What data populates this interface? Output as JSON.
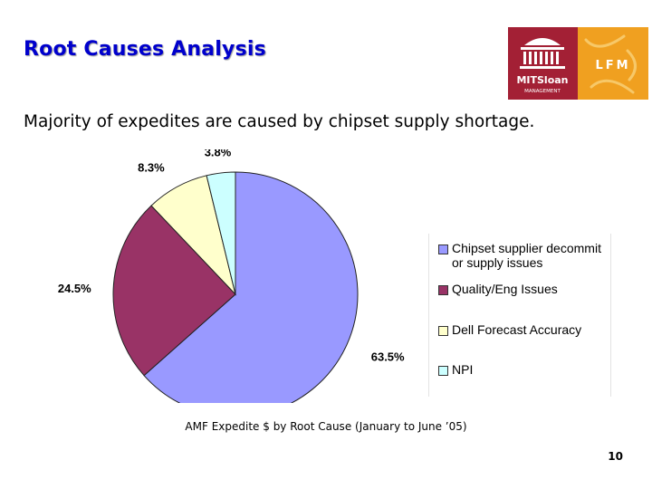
{
  "slide": {
    "title": "Root Causes Analysis",
    "subtitle": "Majority of expedites are caused by chipset supply shortage.",
    "caption": "AMF Expedite $ by Root Cause (January to June ’05)",
    "page_number": "10"
  },
  "logo": {
    "mit_text": "MITSloan",
    "management_text": "MANAGEMENT",
    "lfm_text": "LFM",
    "colors": {
      "red": "#a32035",
      "orange": "#f0a020"
    }
  },
  "chart_data": {
    "type": "pie",
    "title": "",
    "slices": [
      {
        "name": "Chipset supplier decommit or supply issues",
        "legend_lines": [
          "Chipset supplier decommit",
          "or supply issues"
        ],
        "value": 63.5,
        "label": "63.5%",
        "color": "#9999ff"
      },
      {
        "name": "Quality/Eng Issues",
        "legend_lines": [
          "Quality/Eng Issues"
        ],
        "value": 24.5,
        "label": "24.5%",
        "color": "#993366"
      },
      {
        "name": "Dell Forecast Accuracy",
        "legend_lines": [
          "Dell Forecast Accuracy"
        ],
        "value": 8.3,
        "label": "8.3%",
        "color": "#ffffcc"
      },
      {
        "name": "NPI",
        "legend_lines": [
          "NPI"
        ],
        "value": 3.8,
        "label": "3.8%",
        "color": "#ccffff"
      }
    ],
    "start": "12 o'clock",
    "direction": "clockwise",
    "legend_position": "right"
  }
}
